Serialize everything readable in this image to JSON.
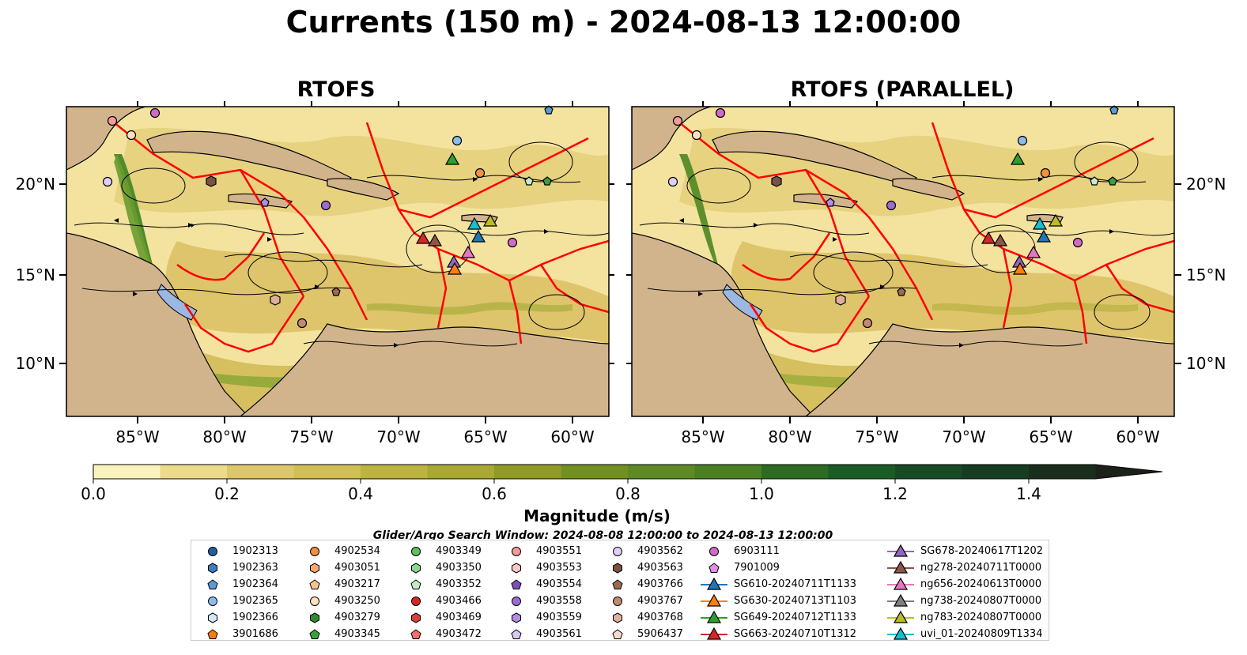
{
  "title": "Currents (150 m) - 2024-08-13 12:00:00",
  "panels": [
    {
      "title": "RTOFS"
    },
    {
      "title": "RTOFS (PARALLEL)"
    }
  ],
  "lon_ticks": [
    "85°W",
    "80°W",
    "75°W",
    "70°W",
    "65°W",
    "60°W"
  ],
  "lat_ticks": [
    "20°N",
    "15°N",
    "10°N"
  ],
  "colorbar": {
    "label": "Magnitude (m/s)",
    "ticks": [
      "0.0",
      "0.2",
      "0.4",
      "0.6",
      "0.8",
      "1.0",
      "1.2",
      "1.4"
    ],
    "colors": [
      "#fbf3bd",
      "#ecdb8a",
      "#dcc86a",
      "#cfbf55",
      "#bdb43f",
      "#a8a833",
      "#8f9b25",
      "#729020",
      "#5d8a24",
      "#4a7f23",
      "#2d6b23",
      "#1a5c25",
      "#174a25",
      "#163d22",
      "#1a2e1d",
      "#1c221a"
    ]
  },
  "map_colors": {
    "ocean": "#9ab8e2",
    "land": "#d2b48c",
    "eez": "#ff0000",
    "coast": "#000000"
  },
  "search_window": "Glider/Argo Search Window: 2024-08-08 12:00:00 to 2024-08-13 12:00:00",
  "legend": [
    {
      "label": "1902313",
      "marker": "circle",
      "color": "#1f5f9e"
    },
    {
      "label": "1902363",
      "marker": "hexagon",
      "color": "#3a7fbf"
    },
    {
      "label": "1902364",
      "marker": "pentagon",
      "color": "#5b9bd5"
    },
    {
      "label": "1902365",
      "marker": "circle",
      "color": "#8bbde8"
    },
    {
      "label": "1902366",
      "marker": "hexagon",
      "color": "#d5e8f7"
    },
    {
      "label": "3901686",
      "marker": "pentagon",
      "color": "#f07f0e"
    },
    {
      "label": "4902534",
      "marker": "circle",
      "color": "#f09040"
    },
    {
      "label": "4903051",
      "marker": "hexagon",
      "color": "#f6aa6a"
    },
    {
      "label": "4903217",
      "marker": "pentagon",
      "color": "#f9c48f"
    },
    {
      "label": "4903250",
      "marker": "circle",
      "color": "#fde0bf"
    },
    {
      "label": "4903279",
      "marker": "hexagon",
      "color": "#2e8b2e"
    },
    {
      "label": "4903345",
      "marker": "pentagon",
      "color": "#3aa03a"
    },
    {
      "label": "4903349",
      "marker": "circle",
      "color": "#5fbf5f"
    },
    {
      "label": "4903350",
      "marker": "hexagon",
      "color": "#8fd48f"
    },
    {
      "label": "4903352",
      "marker": "pentagon",
      "color": "#c4ecc4"
    },
    {
      "label": "4903466",
      "marker": "circle",
      "color": "#d62728"
    },
    {
      "label": "4903469",
      "marker": "hexagon",
      "color": "#d64040"
    },
    {
      "label": "4903472",
      "marker": "pentagon",
      "color": "#f07070"
    },
    {
      "label": "4903551",
      "marker": "circle",
      "color": "#f59a9a"
    },
    {
      "label": "4903553",
      "marker": "hexagon",
      "color": "#fac8c8"
    },
    {
      "label": "4903554",
      "marker": "pentagon",
      "color": "#7b4fb8"
    },
    {
      "label": "4903558",
      "marker": "circle",
      "color": "#9a6dd0"
    },
    {
      "label": "4903559",
      "marker": "hexagon",
      "color": "#b08ee0"
    },
    {
      "label": "4903561",
      "marker": "pentagon",
      "color": "#d9c8f2"
    },
    {
      "label": "4903562",
      "marker": "circle",
      "color": "#e0cff5"
    },
    {
      "label": "4903563",
      "marker": "hexagon",
      "color": "#7b5141"
    },
    {
      "label": "4903766",
      "marker": "pentagon",
      "color": "#9b6a55"
    },
    {
      "label": "4903767",
      "marker": "circle",
      "color": "#c08a75"
    },
    {
      "label": "4903768",
      "marker": "hexagon",
      "color": "#dfb09d"
    },
    {
      "label": "5906437",
      "marker": "pentagon",
      "color": "#fadad0"
    },
    {
      "label": "6903111",
      "marker": "circle",
      "color": "#d06ac8"
    },
    {
      "label": "7901009",
      "marker": "pentagon",
      "color": "#e38fdb"
    },
    {
      "label": "SG610-20240711T1133",
      "marker": "triangle",
      "color": "#1f77b4"
    },
    {
      "label": "SG630-20240713T1103",
      "marker": "triangle",
      "color": "#ff7f0e"
    },
    {
      "label": "SG649-20240712T1133",
      "marker": "triangle",
      "color": "#2ca02c"
    },
    {
      "label": "SG663-20240710T1312",
      "marker": "triangle",
      "color": "#d62728"
    },
    {
      "label": "SG678-20240617T1202",
      "marker": "triangle",
      "color": "#9467bd"
    },
    {
      "label": "ng278-20240711T0000",
      "marker": "triangle",
      "color": "#8c564b"
    },
    {
      "label": "ng656-20240613T0000",
      "marker": "triangle",
      "color": "#e377c2"
    },
    {
      "label": "ng738-20240807T0000",
      "marker": "triangle",
      "color": "#7f7f7f"
    },
    {
      "label": "ng783-20240807T0000",
      "marker": "triangle",
      "color": "#bcbd22"
    },
    {
      "label": "uvi_01-20240809T1334",
      "marker": "triangle",
      "color": "#17becf"
    }
  ]
}
